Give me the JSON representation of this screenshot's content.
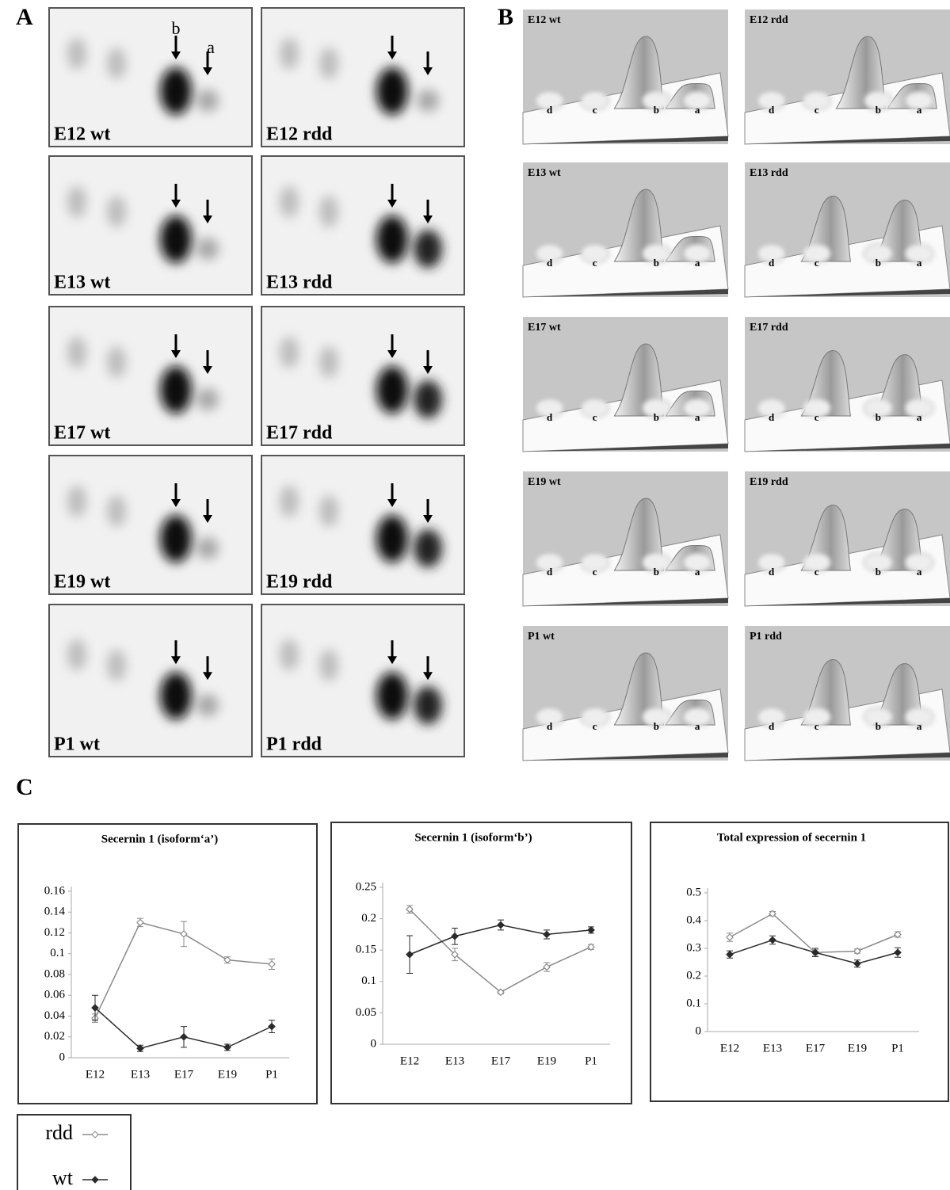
{
  "panel_labels": [
    "A",
    "B",
    "C"
  ],
  "gel_labels": [
    "E12 wt",
    "E12 rdd",
    "E13 wt",
    "E13 rdd",
    "E17 wt",
    "E17 rdd",
    "E19 wt",
    "E19 rdd",
    "P1 wt",
    "P1 rdd"
  ],
  "gel_spot_labels": [
    "b",
    "a"
  ],
  "peak_labels": [
    "d",
    "c",
    "b",
    "a"
  ],
  "chart_data": [
    {
      "type": "line",
      "title": "Secernin 1 (isoform‘a’)",
      "categories": [
        "E12",
        "E13",
        "E17",
        "E19",
        "P1"
      ],
      "ylim": [
        0,
        0.16
      ],
      "yticks": [
        0,
        0.02,
        0.04,
        0.06,
        0.08,
        0.1,
        0.12,
        0.14,
        0.16
      ],
      "series": [
        {
          "name": "rdd",
          "color": "#8a8a8a",
          "marker": "open",
          "values": [
            0.038,
            0.13,
            0.119,
            0.094,
            0.09
          ],
          "errors": [
            0.004,
            0.004,
            0.012,
            0.003,
            0.005
          ]
        },
        {
          "name": "wt",
          "color": "#2a2a2a",
          "marker": "filled",
          "values": [
            0.048,
            0.009,
            0.02,
            0.01,
            0.03
          ],
          "errors": [
            0.012,
            0.003,
            0.01,
            0.003,
            0.006
          ]
        }
      ]
    },
    {
      "type": "line",
      "title": "Secernin 1 (isoform‘b’)",
      "categories": [
        "E12",
        "E13",
        "E17",
        "E19",
        "P1"
      ],
      "ylim": [
        0,
        0.25
      ],
      "yticks": [
        0,
        0.05,
        0.1,
        0.15,
        0.2,
        0.25
      ],
      "series": [
        {
          "name": "rdd",
          "color": "#8a8a8a",
          "marker": "open",
          "values": [
            0.215,
            0.143,
            0.083,
            0.123,
            0.155
          ],
          "errors": [
            0.006,
            0.01,
            0.003,
            0.007,
            0.004
          ]
        },
        {
          "name": "wt",
          "color": "#2a2a2a",
          "marker": "filled",
          "values": [
            0.143,
            0.172,
            0.19,
            0.175,
            0.182
          ],
          "errors": [
            0.03,
            0.013,
            0.008,
            0.007,
            0.005
          ]
        }
      ]
    },
    {
      "type": "line",
      "title": "Total expression of  secernin 1",
      "categories": [
        "E12",
        "E13",
        "E17",
        "E19",
        "P1"
      ],
      "ylim": [
        0,
        0.5
      ],
      "yticks": [
        0,
        0.1,
        0.2,
        0.3,
        0.4,
        0.5
      ],
      "series": [
        {
          "name": "rdd",
          "color": "#8a8a8a",
          "marker": "open",
          "values": [
            0.34,
            0.425,
            0.285,
            0.29,
            0.35
          ],
          "errors": [
            0.015,
            0.008,
            0.01,
            0.008,
            0.01
          ]
        },
        {
          "name": "wt",
          "color": "#2a2a2a",
          "marker": "filled",
          "values": [
            0.278,
            0.33,
            0.285,
            0.245,
            0.285
          ],
          "errors": [
            0.013,
            0.015,
            0.015,
            0.013,
            0.017
          ]
        }
      ]
    }
  ]
}
